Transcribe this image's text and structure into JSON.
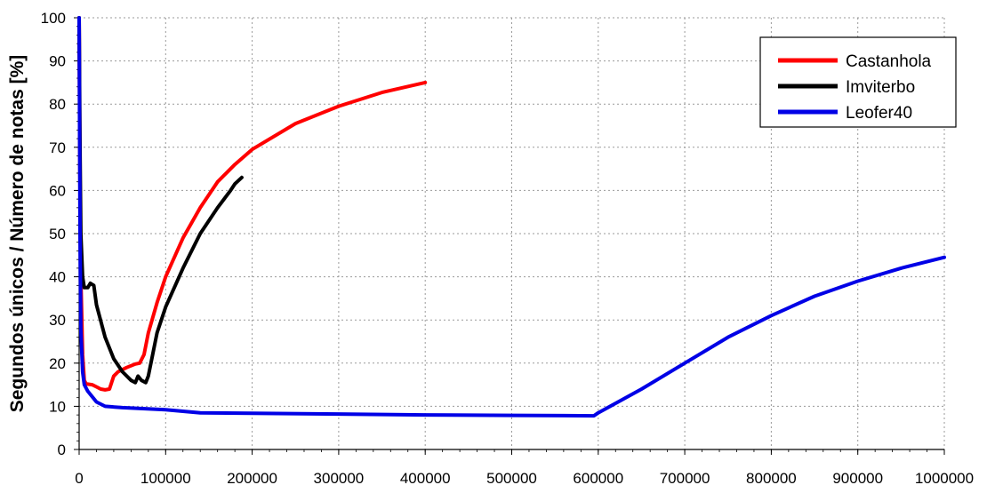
{
  "chart_data": {
    "type": "line",
    "title": "",
    "xlabel": "",
    "ylabel": "Segundos únicos / Número de notas [%]",
    "xlim": [
      0,
      1000000
    ],
    "ylim": [
      0,
      100
    ],
    "x_ticks": [
      0,
      100000,
      200000,
      300000,
      400000,
      500000,
      600000,
      700000,
      800000,
      900000,
      1000000
    ],
    "x_tick_labels": [
      "0",
      "100000",
      "200000",
      "300000",
      "400000",
      "500000",
      "600000",
      "700000",
      "800000",
      "900000",
      "1000000"
    ],
    "y_ticks": [
      0,
      10,
      20,
      30,
      40,
      50,
      60,
      70,
      80,
      90,
      100
    ],
    "y_tick_labels": [
      "0",
      "10",
      "20",
      "30",
      "40",
      "50",
      "60",
      "70",
      "80",
      "90",
      "100"
    ],
    "grid": true,
    "legend_position": "top-right",
    "series": [
      {
        "name": "Castanhola",
        "color": "#ff0000",
        "points": [
          [
            0,
            100
          ],
          [
            1000,
            60
          ],
          [
            2000,
            40
          ],
          [
            4000,
            22
          ],
          [
            6000,
            16
          ],
          [
            8000,
            15.2
          ],
          [
            15000,
            15
          ],
          [
            20000,
            14.5
          ],
          [
            25000,
            14
          ],
          [
            30000,
            13.8
          ],
          [
            35000,
            14
          ],
          [
            40000,
            17
          ],
          [
            45000,
            18
          ],
          [
            55000,
            19
          ],
          [
            65000,
            19.8
          ],
          [
            70000,
            20
          ],
          [
            75000,
            22
          ],
          [
            80000,
            27
          ],
          [
            90000,
            34
          ],
          [
            100000,
            40
          ],
          [
            120000,
            49
          ],
          [
            140000,
            56
          ],
          [
            160000,
            62
          ],
          [
            180000,
            66
          ],
          [
            200000,
            69.5
          ],
          [
            250000,
            75.5
          ],
          [
            300000,
            79.5
          ],
          [
            350000,
            82.7
          ],
          [
            400000,
            85
          ]
        ]
      },
      {
        "name": "Imviterbo",
        "color": "#000000",
        "points": [
          [
            0,
            100
          ],
          [
            1000,
            70
          ],
          [
            2000,
            50
          ],
          [
            4000,
            40
          ],
          [
            6000,
            37.5
          ],
          [
            10000,
            37.5
          ],
          [
            13000,
            38.5
          ],
          [
            17000,
            38
          ],
          [
            20000,
            33.5
          ],
          [
            30000,
            26
          ],
          [
            40000,
            21
          ],
          [
            50000,
            18
          ],
          [
            60000,
            16
          ],
          [
            65000,
            15.5
          ],
          [
            68000,
            17
          ],
          [
            72000,
            16
          ],
          [
            77000,
            15.5
          ],
          [
            80000,
            17
          ],
          [
            85000,
            22
          ],
          [
            90000,
            27
          ],
          [
            100000,
            33
          ],
          [
            120000,
            42
          ],
          [
            140000,
            50
          ],
          [
            160000,
            56
          ],
          [
            175000,
            60
          ],
          [
            180000,
            61.5
          ],
          [
            188000,
            63
          ]
        ]
      },
      {
        "name": "Leofer40",
        "color": "#0000e6",
        "points": [
          [
            0,
            100
          ],
          [
            1000,
            50
          ],
          [
            2000,
            28
          ],
          [
            4000,
            18
          ],
          [
            6000,
            15
          ],
          [
            10000,
            13.5
          ],
          [
            20000,
            11
          ],
          [
            30000,
            10
          ],
          [
            50000,
            9.7
          ],
          [
            100000,
            9.2
          ],
          [
            140000,
            8.5
          ],
          [
            200000,
            8.4
          ],
          [
            300000,
            8.2
          ],
          [
            400000,
            8
          ],
          [
            500000,
            7.9
          ],
          [
            595000,
            7.8
          ],
          [
            600000,
            8.5
          ],
          [
            650000,
            14
          ],
          [
            700000,
            20
          ],
          [
            750000,
            26
          ],
          [
            800000,
            31
          ],
          [
            850000,
            35.5
          ],
          [
            900000,
            39
          ],
          [
            950000,
            42
          ],
          [
            1000000,
            44.5
          ]
        ]
      }
    ]
  }
}
